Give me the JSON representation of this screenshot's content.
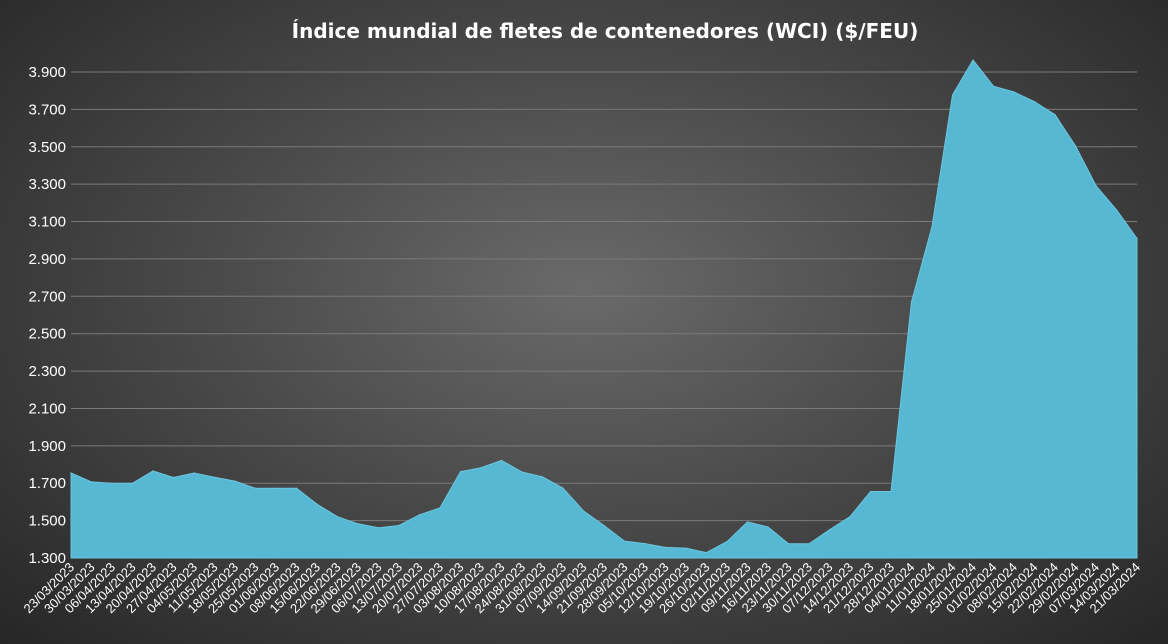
{
  "chart_data": {
    "type": "area",
    "title": "Índice mundial de fletes de contenedores (WCI) ($/FEU)",
    "xlabel": "",
    "ylabel": "",
    "ylim": [
      1300,
      3900
    ],
    "yticks": [
      1300,
      1500,
      1700,
      1900,
      2100,
      2300,
      2500,
      2700,
      2900,
      3100,
      3300,
      3500,
      3700,
      3900
    ],
    "ytick_labels": [
      "1.300",
      "1.500",
      "1.700",
      "1.900",
      "2.100",
      "2.300",
      "2.500",
      "2.700",
      "2.900",
      "3.100",
      "3.300",
      "3.500",
      "3.700",
      "3.900"
    ],
    "grid": true,
    "legend": "none",
    "fill_color": "#56B8D3",
    "categories": [
      "23/03/2023",
      "30/03/2023",
      "06/04/2023",
      "13/04/2023",
      "20/04/2023",
      "27/04/2023",
      "04/05/2023",
      "11/05/2023",
      "18/05/2023",
      "25/05/2023",
      "01/06/2023",
      "08/06/2023",
      "15/06/2023",
      "22/06/2023",
      "29/06/2023",
      "06/07/2023",
      "13/07/2023",
      "20/07/2023",
      "27/07/2023",
      "03/08/2023",
      "10/08/2023",
      "17/08/2023",
      "24/08/2023",
      "31/08/2023",
      "07/09/2023",
      "14/09/2023",
      "21/09/2023",
      "28/09/2023",
      "05/10/2023",
      "12/10/2023",
      "19/10/2023",
      "26/10/2023",
      "02/11/2023",
      "09/11/2023",
      "16/11/2023",
      "23/11/2023",
      "30/11/2023",
      "07/12/2023",
      "14/12/2023",
      "21/12/2023",
      "28/12/2023",
      "04/01/2024",
      "11/01/2024",
      "18/01/2024",
      "25/01/2024",
      "01/02/2024",
      "08/02/2024",
      "15/02/2024",
      "22/02/2024",
      "29/02/2024",
      "07/03/2024",
      "14/03/2024",
      "21/03/2024"
    ],
    "values": [
      1755,
      1707,
      1700,
      1700,
      1766,
      1731,
      1755,
      1732,
      1711,
      1673,
      1673,
      1673,
      1588,
      1521,
      1483,
      1462,
      1474,
      1531,
      1568,
      1762,
      1783,
      1822,
      1760,
      1734,
      1674,
      1552,
      1474,
      1390,
      1377,
      1357,
      1353,
      1329,
      1388,
      1493,
      1466,
      1376,
      1376,
      1451,
      1521,
      1656,
      1656,
      2670,
      3072,
      3777,
      3964,
      3824,
      3793,
      3741,
      3672,
      3505,
      3292,
      3163,
      3010
    ]
  }
}
